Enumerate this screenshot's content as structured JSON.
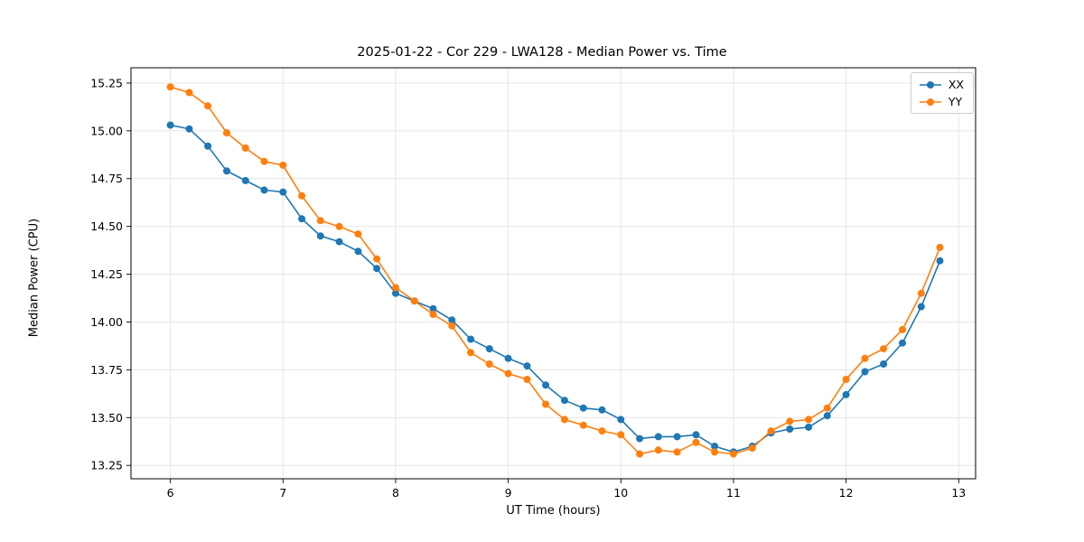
{
  "chart_data": {
    "type": "line",
    "title": "2025-01-22 - Cor 229 - LWA128 - Median Power vs. Time",
    "xlabel": "UT Time (hours)",
    "ylabel": "Median Power (CPU)",
    "xlim": [
      5.65,
      13.15
    ],
    "ylim": [
      13.18,
      15.33
    ],
    "xticks": [
      6,
      7,
      8,
      9,
      10,
      11,
      12,
      13
    ],
    "yticks": [
      13.25,
      13.5,
      13.75,
      14.0,
      14.25,
      14.5,
      14.75,
      15.0,
      15.25
    ],
    "grid": true,
    "legend_position": "upper right",
    "x": [
      6.0,
      6.167,
      6.333,
      6.5,
      6.667,
      6.833,
      7.0,
      7.167,
      7.333,
      7.5,
      7.667,
      7.833,
      8.0,
      8.167,
      8.333,
      8.5,
      8.667,
      8.833,
      9.0,
      9.167,
      9.333,
      9.5,
      9.667,
      9.833,
      10.0,
      10.167,
      10.333,
      10.5,
      10.667,
      10.833,
      11.0,
      11.167,
      11.333,
      11.5,
      11.667,
      11.833,
      12.0,
      12.167,
      12.333,
      12.5,
      12.667,
      12.833
    ],
    "series": [
      {
        "name": "XX",
        "color": "#1f77b4",
        "values": [
          15.03,
          15.01,
          14.92,
          14.79,
          14.74,
          14.69,
          14.68,
          14.54,
          14.45,
          14.42,
          14.37,
          14.28,
          14.15,
          14.11,
          14.07,
          14.01,
          13.91,
          13.86,
          13.81,
          13.77,
          13.67,
          13.59,
          13.55,
          13.54,
          13.49,
          13.39,
          13.4,
          13.4,
          13.41,
          13.35,
          13.32,
          13.35,
          13.42,
          13.44,
          13.45,
          13.51,
          13.62,
          13.74,
          13.78,
          13.89,
          14.08,
          14.32
        ]
      },
      {
        "name": "YY",
        "color": "#ff7f0e",
        "values": [
          15.23,
          15.2,
          15.13,
          14.99,
          14.91,
          14.84,
          14.82,
          14.66,
          14.53,
          14.5,
          14.46,
          14.33,
          14.18,
          14.11,
          14.04,
          13.98,
          13.84,
          13.78,
          13.73,
          13.7,
          13.57,
          13.49,
          13.46,
          13.43,
          13.41,
          13.31,
          13.33,
          13.32,
          13.37,
          13.32,
          13.31,
          13.34,
          13.43,
          13.48,
          13.49,
          13.55,
          13.7,
          13.81,
          13.86,
          13.96,
          14.15,
          14.39
        ]
      }
    ]
  }
}
